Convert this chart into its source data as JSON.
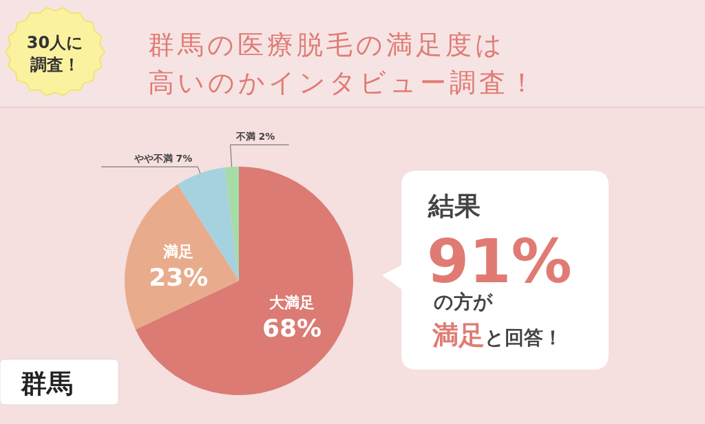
{
  "chart_data": {
    "type": "pie",
    "title": "群馬の医療脱毛の満足度は高いのかインタビュー調査！",
    "categories": [
      "大満足",
      "満足",
      "やや不満",
      "不満"
    ],
    "values": [
      68,
      23,
      7,
      2
    ],
    "value_labels": [
      "68%",
      "23%",
      "7%",
      "2%"
    ],
    "colors": [
      "#db7b74",
      "#e8ac8c",
      "#a6d2df",
      "#a5dca8"
    ],
    "annotations": [
      "30人に調査！",
      "結果",
      "91%",
      "の方が",
      "満足と回答！",
      "群馬"
    ]
  }
}
